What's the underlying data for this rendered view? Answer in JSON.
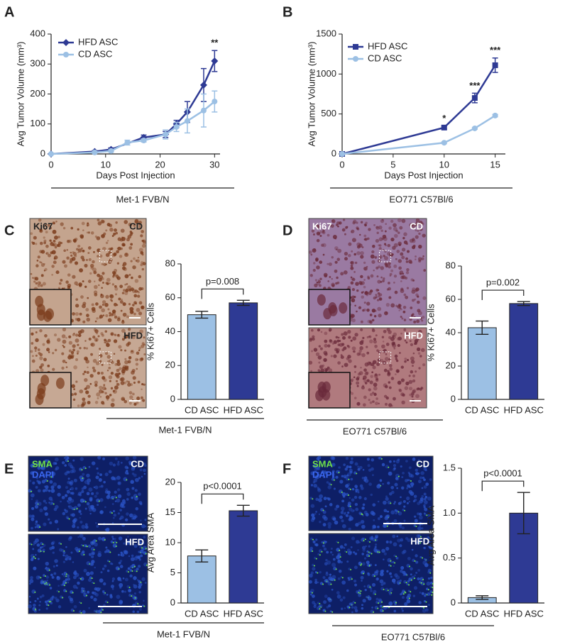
{
  "chart_data": [
    {
      "type": "line",
      "panel_label": "A",
      "group_label": "Met-1 FVB/N",
      "x_label": "Days Post Injection",
      "y_label": "Avg Tumor Volume (mm³)",
      "xlim": [
        0,
        31
      ],
      "xticks": [
        0,
        10,
        20,
        30
      ],
      "ylim": [
        0,
        400
      ],
      "yticks": [
        0,
        100,
        200,
        300,
        400
      ],
      "series": [
        {
          "name": "HFD ASC",
          "color": "#2e3a94",
          "marker": "diamond",
          "x": [
            0,
            8,
            11,
            17,
            21,
            23,
            25,
            28,
            30
          ],
          "values": [
            0,
            8,
            15,
            55,
            65,
            100,
            140,
            230,
            310
          ],
          "errors": [
            0,
            3,
            5,
            8,
            10,
            12,
            35,
            55,
            35
          ]
        },
        {
          "name": "CD ASC",
          "color": "#9cc0e4",
          "marker": "circle",
          "x": [
            0,
            8,
            11,
            14,
            17,
            21,
            23,
            25,
            28,
            30
          ],
          "values": [
            0,
            5,
            10,
            38,
            45,
            65,
            90,
            110,
            145,
            175
          ],
          "errors": [
            0,
            3,
            4,
            8,
            5,
            15,
            15,
            40,
            55,
            35
          ]
        }
      ],
      "annotations": [
        {
          "text": "**",
          "x": 30
        }
      ]
    },
    {
      "type": "line",
      "panel_label": "B",
      "group_label": "EO771 C57Bl/6",
      "x_label": "Days Post Injection",
      "y_label": "Avg Tumor Volume (mm³)",
      "xlim": [
        0,
        16
      ],
      "xticks": [
        0,
        5,
        10,
        15
      ],
      "ylim": [
        0,
        1500
      ],
      "yticks": [
        0,
        500,
        1000,
        1500
      ],
      "series": [
        {
          "name": "HFD ASC",
          "color": "#2e3a94",
          "marker": "square",
          "x": [
            0,
            10,
            13,
            15
          ],
          "values": [
            0,
            330,
            700,
            1110
          ],
          "errors": [
            0,
            20,
            60,
            90
          ]
        },
        {
          "name": "CD ASC",
          "color": "#9cc0e4",
          "marker": "circle",
          "x": [
            0,
            10,
            13,
            15
          ],
          "values": [
            0,
            140,
            320,
            480
          ],
          "errors": [
            0,
            10,
            10,
            15
          ]
        }
      ],
      "annotations": [
        {
          "text": "*",
          "x": 10
        },
        {
          "text": "***",
          "x": 13
        },
        {
          "text": "***",
          "x": 15
        }
      ]
    },
    {
      "type": "bar",
      "panel_label": "C",
      "group_label": "Met-1 FVB/N",
      "images": [
        {
          "left": [
            "Ki67"
          ],
          "right": "CD"
        },
        {
          "left": [],
          "right": "HFD"
        }
      ],
      "y_label": "% Ki67+ Cells",
      "categories": [
        "CD ASC",
        "HFD ASC"
      ],
      "colors": [
        "#9cc0e4",
        "#2e3a94"
      ],
      "values": [
        50,
        57
      ],
      "errors": [
        2,
        1.5
      ],
      "p_label": "p=0.008",
      "ylim": [
        0,
        80
      ],
      "yticks": [
        0,
        20,
        40,
        60,
        80
      ]
    },
    {
      "type": "bar",
      "panel_label": "D",
      "group_label": "EO771 C57Bl/6",
      "images": [
        {
          "left": [
            "Ki67"
          ],
          "right": "CD"
        },
        {
          "left": [],
          "right": "HFD"
        }
      ],
      "y_label": "% Ki67+ Cells",
      "categories": [
        "CD ASC",
        "HFD ASC"
      ],
      "colors": [
        "#9cc0e4",
        "#2e3a94"
      ],
      "values": [
        43,
        57.5
      ],
      "errors": [
        4,
        1.2
      ],
      "p_label": "p=0.002",
      "ylim": [
        0,
        80
      ],
      "yticks": [
        0,
        20,
        40,
        60,
        80
      ]
    },
    {
      "type": "bar",
      "panel_label": "E",
      "group_label": "Met-1 FVB/N",
      "images": [
        {
          "left": [
            "SMA",
            "DAPI"
          ],
          "right": "CD"
        },
        {
          "left": [],
          "right": "HFD"
        }
      ],
      "y_label": "Avg Area SMA",
      "categories": [
        "CD ASC",
        "HFD ASC"
      ],
      "colors": [
        "#9cc0e4",
        "#2e3a94"
      ],
      "values": [
        7.8,
        15.3
      ],
      "errors": [
        1,
        0.9
      ],
      "p_label": "p<0.0001",
      "ylim": [
        0,
        20
      ],
      "yticks": [
        0,
        5,
        10,
        15,
        20
      ]
    },
    {
      "type": "bar",
      "panel_label": "F",
      "group_label": "EO771 C57Bl/6",
      "images": [
        {
          "left": [
            "SMA",
            "DAPI"
          ],
          "right": "CD"
        },
        {
          "left": [],
          "right": "HFD"
        }
      ],
      "y_label": "Avg Area SMA",
      "categories": [
        "CD ASC",
        "HFD ASC"
      ],
      "colors": [
        "#9cc0e4",
        "#2e3a94"
      ],
      "values": [
        0.06,
        1.0
      ],
      "errors": [
        0.02,
        0.23
      ],
      "p_label": "p<0.0001",
      "ylim": [
        0,
        1.5
      ],
      "yticks": [
        0,
        0.5,
        {
          "value": 1,
          "label": "1.0"
        },
        1.5
      ]
    }
  ]
}
